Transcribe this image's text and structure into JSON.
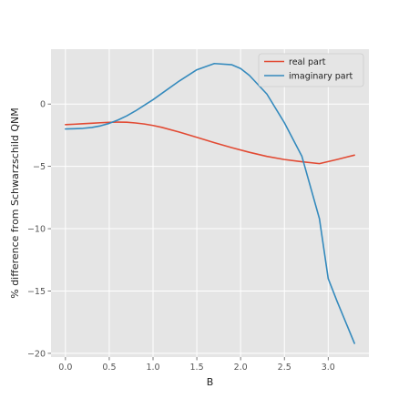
{
  "chart_data": {
    "type": "line",
    "title": "",
    "xlabel": "B",
    "ylabel": "% difference from Schwarzschild QNM",
    "xlim": [
      -0.165,
      3.465
    ],
    "ylim": [
      -20.3,
      4.4
    ],
    "xticks": [
      0.0,
      0.5,
      1.0,
      1.5,
      2.0,
      2.5,
      3.0
    ],
    "xtick_labels": [
      "0.0",
      "0.5",
      "1.0",
      "1.5",
      "2.0",
      "2.5",
      "3.0"
    ],
    "yticks": [
      -20,
      -15,
      -10,
      -5,
      0
    ],
    "ytick_labels": [
      "−20",
      "−15",
      "−10",
      "−5",
      "0"
    ],
    "grid": true,
    "legend_position": "top-right",
    "series": [
      {
        "name": "real part",
        "color": "#E24A33",
        "x": [
          0.0,
          0.1,
          0.2,
          0.3,
          0.4,
          0.5,
          0.6,
          0.7,
          0.8,
          0.9,
          1.0,
          1.1,
          1.3,
          1.5,
          1.7,
          1.9,
          2.1,
          2.3,
          2.5,
          2.7,
          2.9,
          3.1,
          3.3
        ],
        "y": [
          -1.65,
          -1.62,
          -1.58,
          -1.54,
          -1.5,
          -1.47,
          -1.45,
          -1.46,
          -1.52,
          -1.6,
          -1.72,
          -1.87,
          -2.25,
          -2.67,
          -3.1,
          -3.5,
          -3.87,
          -4.2,
          -4.45,
          -4.63,
          -4.78,
          -4.45,
          -4.1
        ]
      },
      {
        "name": "imaginary part",
        "color": "#348ABD",
        "x": [
          0.0,
          0.1,
          0.2,
          0.3,
          0.4,
          0.5,
          0.6,
          0.7,
          0.8,
          0.9,
          1.0,
          1.1,
          1.3,
          1.5,
          1.7,
          1.9,
          2.0,
          2.1,
          2.3,
          2.5,
          2.7,
          2.9,
          3.0,
          3.1,
          3.3
        ],
        "y": [
          -2.0,
          -1.98,
          -1.95,
          -1.88,
          -1.75,
          -1.55,
          -1.28,
          -0.95,
          -0.55,
          -0.1,
          0.35,
          0.85,
          1.85,
          2.75,
          3.25,
          3.15,
          2.85,
          2.3,
          0.8,
          -1.5,
          -4.2,
          -9.2,
          -14.0,
          -15.8,
          -19.2
        ]
      }
    ]
  }
}
